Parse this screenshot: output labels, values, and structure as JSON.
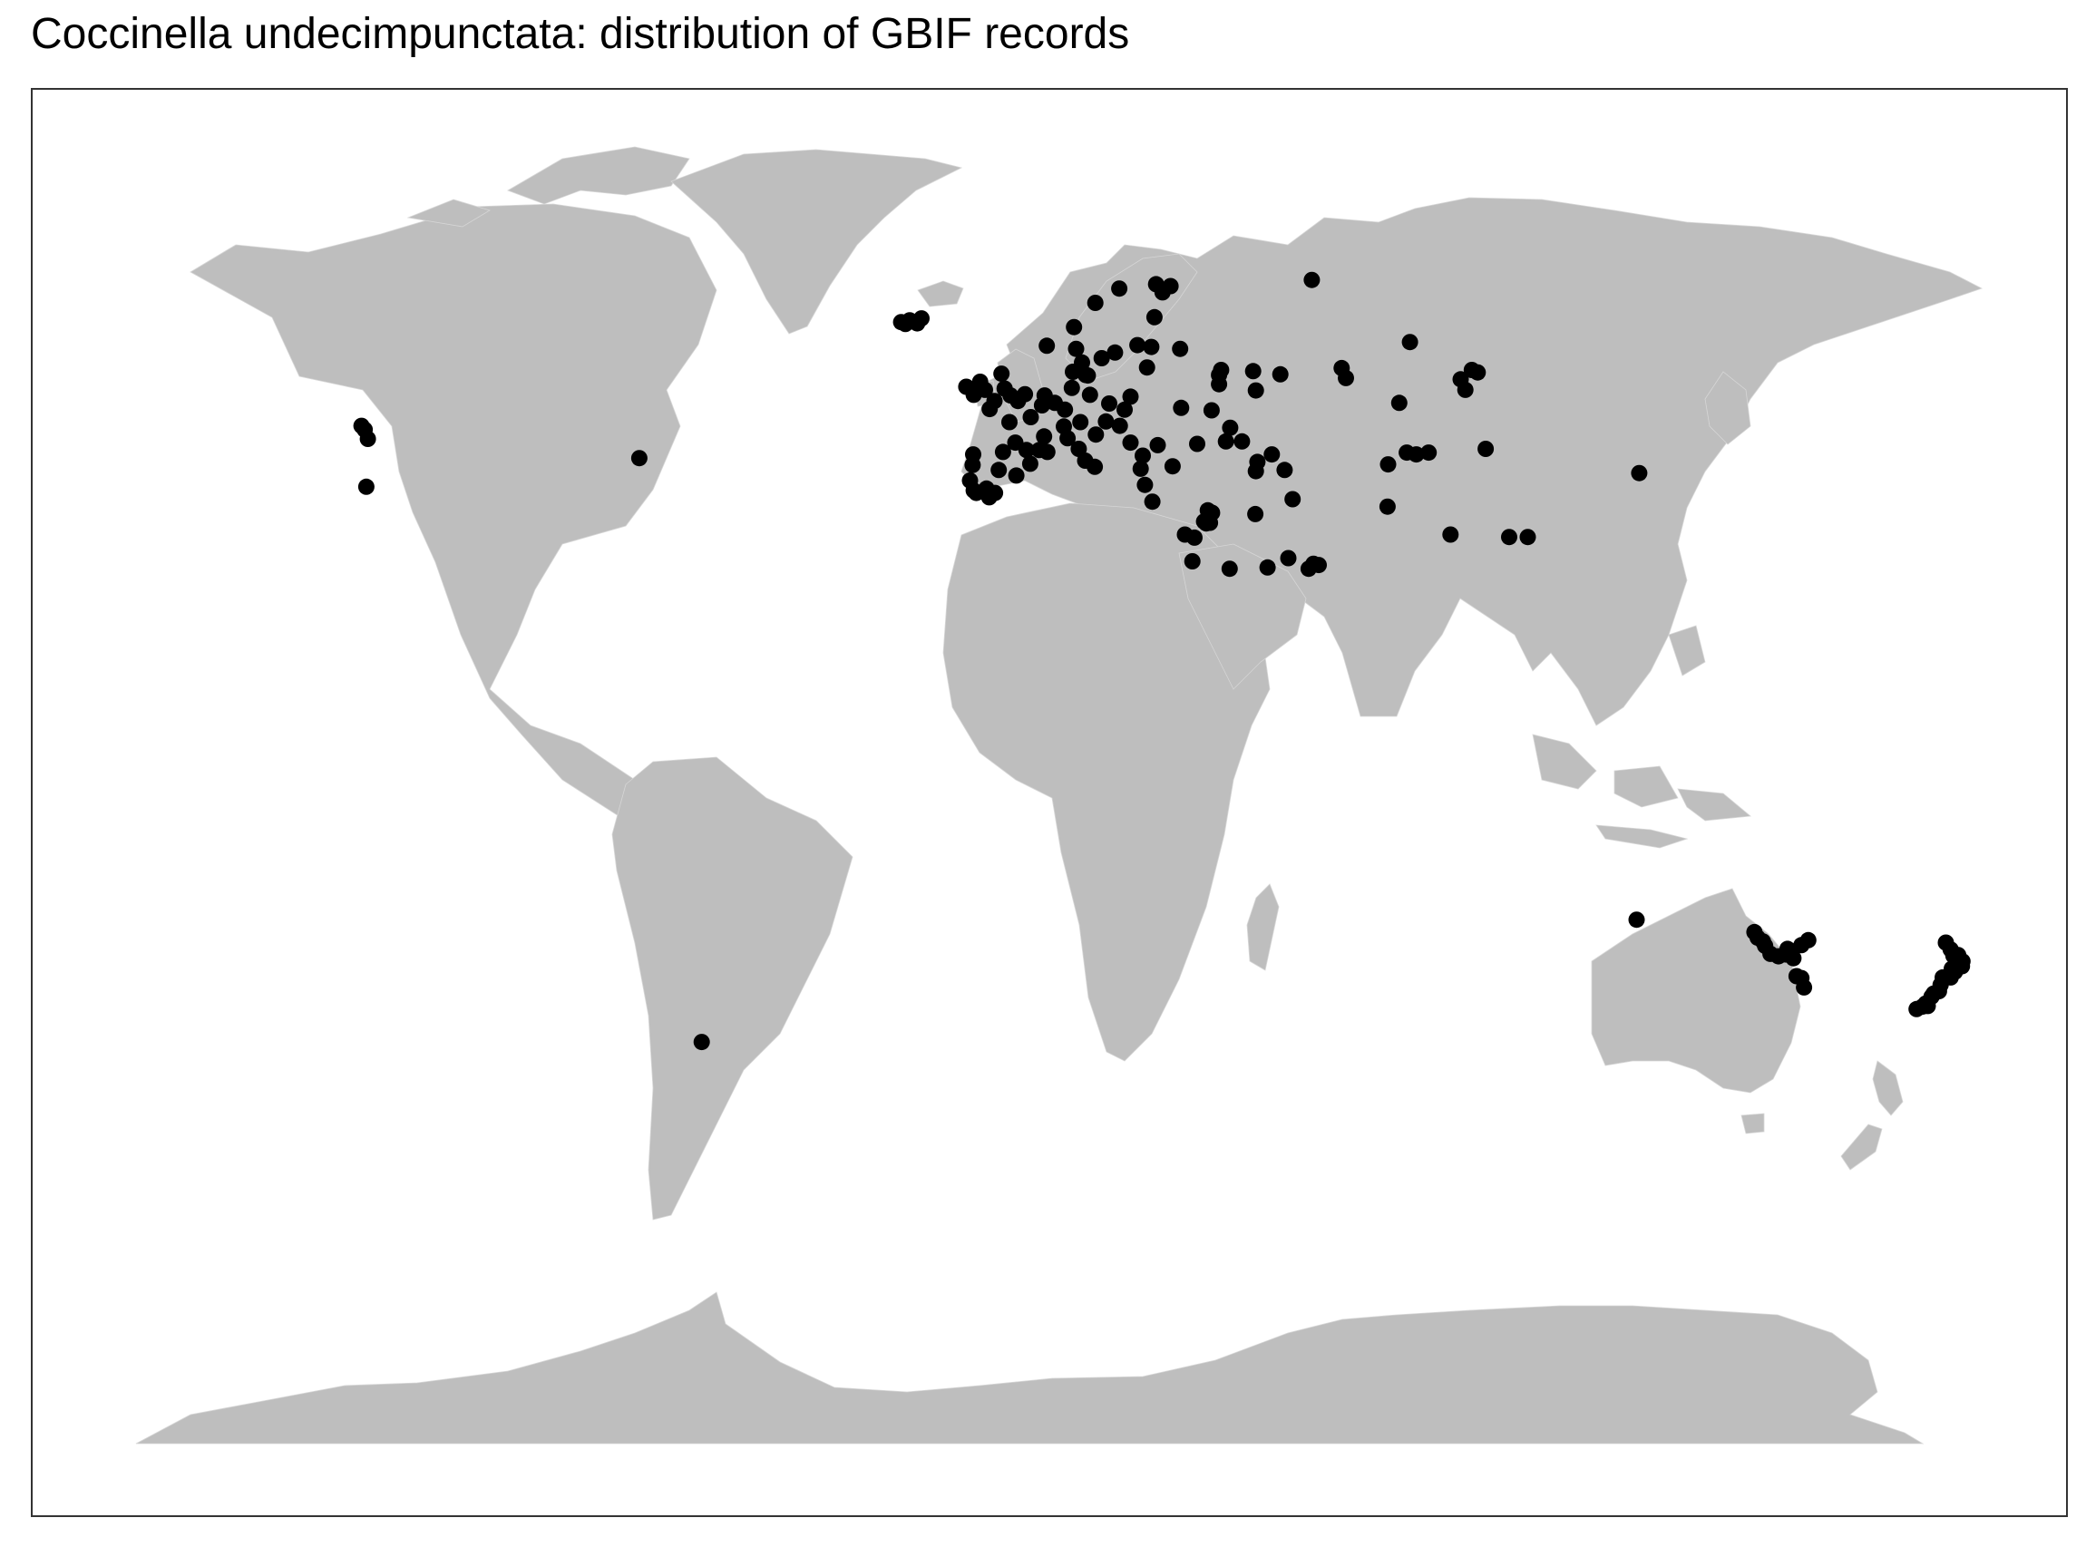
{
  "title": "Coccinella undecimpunctata: distribution of GBIF records",
  "colors": {
    "land": "#bebebe",
    "points": "#000000",
    "frame": "#333333",
    "background": "#ffffff"
  },
  "chart_data": {
    "type": "scatter",
    "projection": "equirectangular world map",
    "series_color": "#000000",
    "points": [
      {
        "lon": -123.2,
        "lat": 47.5
      },
      {
        "lon": -122.6,
        "lat": 46.9
      },
      {
        "lon": -122.0,
        "lat": 45.4
      },
      {
        "lon": -122.3,
        "lat": 37.7
      },
      {
        "lon": -71.1,
        "lat": 42.3
      },
      {
        "lon": -59.4,
        "lat": -51.7
      },
      {
        "lon": -22.0,
        "lat": 64.2
      },
      {
        "lon": -21.2,
        "lat": 63.9
      },
      {
        "lon": -20.4,
        "lat": 64.5
      },
      {
        "lon": -19.0,
        "lat": 64.0
      },
      {
        "lon": -18.2,
        "lat": 64.8
      },
      {
        "lon": -9.8,
        "lat": 53.8
      },
      {
        "lon": -8.4,
        "lat": 52.5
      },
      {
        "lon": -7.2,
        "lat": 54.6
      },
      {
        "lon": -6.3,
        "lat": 53.3
      },
      {
        "lon": -5.4,
        "lat": 50.2
      },
      {
        "lon": -4.5,
        "lat": 51.5
      },
      {
        "lon": -3.2,
        "lat": 55.9
      },
      {
        "lon": -2.6,
        "lat": 53.5
      },
      {
        "lon": -1.5,
        "lat": 52.4
      },
      {
        "lon": -0.1,
        "lat": 51.5
      },
      {
        "lon": 1.2,
        "lat": 52.6
      },
      {
        "lon": -1.7,
        "lat": 48.1
      },
      {
        "lon": -0.6,
        "lat": 44.8
      },
      {
        "lon": 1.5,
        "lat": 43.6
      },
      {
        "lon": 2.3,
        "lat": 48.9
      },
      {
        "lon": 3.9,
        "lat": 43.6
      },
      {
        "lon": 5.4,
        "lat": 43.3
      },
      {
        "lon": 4.8,
        "lat": 45.8
      },
      {
        "lon": 4.4,
        "lat": 50.8
      },
      {
        "lon": 4.9,
        "lat": 52.4
      },
      {
        "lon": 6.8,
        "lat": 51.2
      },
      {
        "lon": 8.7,
        "lat": 50.1
      },
      {
        "lon": 10.0,
        "lat": 53.6
      },
      {
        "lon": 11.6,
        "lat": 48.1
      },
      {
        "lon": 13.4,
        "lat": 52.5
      },
      {
        "lon": 8.5,
        "lat": 47.4
      },
      {
        "lon": 9.2,
        "lat": 45.5
      },
      {
        "lon": 11.3,
        "lat": 43.8
      },
      {
        "lon": 12.5,
        "lat": 41.9
      },
      {
        "lon": 14.3,
        "lat": 40.9
      },
      {
        "lon": 16.4,
        "lat": 48.2
      },
      {
        "lon": 14.5,
        "lat": 46.1
      },
      {
        "lon": 12.6,
        "lat": 55.7
      },
      {
        "lon": 10.2,
        "lat": 56.2
      },
      {
        "lon": 11.9,
        "lat": 57.7
      },
      {
        "lon": 13.0,
        "lat": 55.6
      },
      {
        "lon": 15.6,
        "lat": 58.4
      },
      {
        "lon": 18.1,
        "lat": 59.3
      },
      {
        "lon": 10.8,
        "lat": 59.9
      },
      {
        "lon": 5.3,
        "lat": 60.4
      },
      {
        "lon": 10.4,
        "lat": 63.4
      },
      {
        "lon": 14.4,
        "lat": 67.3
      },
      {
        "lon": 18.9,
        "lat": 69.6
      },
      {
        "lon": 22.3,
        "lat": 60.5
      },
      {
        "lon": 24.9,
        "lat": 60.2
      },
      {
        "lon": 25.5,
        "lat": 65.0
      },
      {
        "lon": 27.0,
        "lat": 69.0
      },
      {
        "lon": 25.8,
        "lat": 70.3
      },
      {
        "lon": 28.5,
        "lat": 70.0
      },
      {
        "lon": 21.0,
        "lat": 52.2
      },
      {
        "lon": 19.9,
        "lat": 50.1
      },
      {
        "lon": 17.0,
        "lat": 51.1
      },
      {
        "lon": 19.0,
        "lat": 47.5
      },
      {
        "lon": 24.1,
        "lat": 56.9
      },
      {
        "lon": 26.1,
        "lat": 44.4
      },
      {
        "lon": 23.3,
        "lat": 42.7
      },
      {
        "lon": 21.0,
        "lat": 44.8
      },
      {
        "lon": 28.9,
        "lat": 41.0
      },
      {
        "lon": 23.7,
        "lat": 38.0
      },
      {
        "lon": 22.9,
        "lat": 40.6
      },
      {
        "lon": 25.1,
        "lat": 35.3
      },
      {
        "lon": 30.5,
        "lat": 50.4
      },
      {
        "lon": 37.6,
        "lat": 55.7
      },
      {
        "lon": 30.3,
        "lat": 59.9
      },
      {
        "lon": 38.0,
        "lat": 56.5
      },
      {
        "lon": 37.6,
        "lat": 54.2
      },
      {
        "lon": 36.2,
        "lat": 50.0
      },
      {
        "lon": 44.0,
        "lat": 56.3
      },
      {
        "lon": 44.5,
        "lat": 53.2
      },
      {
        "lon": 49.1,
        "lat": 55.8
      },
      {
        "lon": 39.7,
        "lat": 47.2
      },
      {
        "lon": 38.9,
        "lat": 45.0
      },
      {
        "lon": 41.9,
        "lat": 45.0
      },
      {
        "lon": 44.8,
        "lat": 41.7
      },
      {
        "lon": 44.5,
        "lat": 40.2
      },
      {
        "lon": 47.5,
        "lat": 42.9
      },
      {
        "lon": 49.9,
        "lat": 40.4
      },
      {
        "lon": 33.5,
        "lat": 44.6
      },
      {
        "lon": 34.8,
        "lat": 32.1
      },
      {
        "lon": 35.5,
        "lat": 33.9
      },
      {
        "lon": 36.3,
        "lat": 33.5
      },
      {
        "lon": 35.2,
        "lat": 31.8
      },
      {
        "lon": 35.9,
        "lat": 31.9
      },
      {
        "lon": 33.0,
        "lat": 29.5
      },
      {
        "lon": 32.6,
        "lat": 25.7
      },
      {
        "lon": 31.2,
        "lat": 30.0
      },
      {
        "lon": 44.4,
        "lat": 33.3
      },
      {
        "lon": 46.7,
        "lat": 24.7
      },
      {
        "lon": 39.6,
        "lat": 24.5
      },
      {
        "lon": 51.4,
        "lat": 35.7
      },
      {
        "lon": 54.4,
        "lat": 24.5
      },
      {
        "lon": 55.3,
        "lat": 25.3
      },
      {
        "lon": 56.3,
        "lat": 25.1
      },
      {
        "lon": 50.6,
        "lat": 26.2
      },
      {
        "lon": 60.6,
        "lat": 56.8
      },
      {
        "lon": 61.4,
        "lat": 55.2
      },
      {
        "lon": 69.3,
        "lat": 41.3
      },
      {
        "lon": 71.4,
        "lat": 51.2
      },
      {
        "lon": 72.8,
        "lat": 43.2
      },
      {
        "lon": 76.9,
        "lat": 43.2
      },
      {
        "lon": 74.6,
        "lat": 42.9
      },
      {
        "lon": 69.2,
        "lat": 34.5
      },
      {
        "lon": 73.4,
        "lat": 61.0
      },
      {
        "lon": 82.9,
        "lat": 55.0
      },
      {
        "lon": 83.8,
        "lat": 53.3
      },
      {
        "lon": 85.0,
        "lat": 56.5
      },
      {
        "lon": 87.6,
        "lat": 43.8
      },
      {
        "lon": 92.0,
        "lat": 29.6
      },
      {
        "lon": 95.5,
        "lat": 29.6
      },
      {
        "lon": 116.4,
        "lat": 39.9
      },
      {
        "lon": 55.0,
        "lat": 71.0
      },
      {
        "lon": 86.1,
        "lat": 56.1
      },
      {
        "lon": 81.0,
        "lat": 30.0
      },
      {
        "lon": -8.6,
        "lat": 41.2
      },
      {
        "lon": -9.1,
        "lat": 38.7
      },
      {
        "lon": -8.4,
        "lat": 37.1
      },
      {
        "lon": -6.0,
        "lat": 37.4
      },
      {
        "lon": -3.7,
        "lat": 40.4
      },
      {
        "lon": -0.4,
        "lat": 39.5
      },
      {
        "lon": 2.2,
        "lat": 41.4
      },
      {
        "lon": -7.9,
        "lat": 36.7
      },
      {
        "lon": -5.5,
        "lat": 36.0
      },
      {
        "lon": -2.9,
        "lat": 43.3
      },
      {
        "lon": -8.5,
        "lat": 42.9
      },
      {
        "lon": -4.4,
        "lat": 36.7
      },
      {
        "lon": 115.9,
        "lat": -32.0
      },
      {
        "lon": 138.6,
        "lat": -34.9
      },
      {
        "lon": 139.6,
        "lat": -35.5
      },
      {
        "lon": 140.0,
        "lat": -36.2
      },
      {
        "lon": 141.0,
        "lat": -37.5
      },
      {
        "lon": 142.5,
        "lat": -37.9
      },
      {
        "lon": 143.9,
        "lat": -37.6
      },
      {
        "lon": 144.9,
        "lat": -37.8
      },
      {
        "lon": 145.3,
        "lat": -38.2
      },
      {
        "lon": 146.8,
        "lat": -36.1
      },
      {
        "lon": 147.3,
        "lat": -42.9
      },
      {
        "lon": 146.8,
        "lat": -41.4
      },
      {
        "lon": 148.1,
        "lat": -35.3
      },
      {
        "lon": 138.0,
        "lat": -34.0
      },
      {
        "lon": 144.2,
        "lat": -36.7
      },
      {
        "lon": 145.9,
        "lat": -41.1
      },
      {
        "lon": 174.8,
        "lat": -36.8
      },
      {
        "lon": 175.3,
        "lat": -37.8
      },
      {
        "lon": 176.2,
        "lat": -37.7
      },
      {
        "lon": 176.9,
        "lat": -39.5
      },
      {
        "lon": 175.6,
        "lat": -40.4
      },
      {
        "lon": 174.8,
        "lat": -41.3
      },
      {
        "lon": 173.3,
        "lat": -41.3
      },
      {
        "lon": 172.6,
        "lat": -43.5
      },
      {
        "lon": 171.2,
        "lat": -44.4
      },
      {
        "lon": 170.5,
        "lat": -45.9
      },
      {
        "lon": 168.4,
        "lat": -46.4
      },
      {
        "lon": 169.5,
        "lat": -46.0
      },
      {
        "lon": 175.0,
        "lat": -39.9
      },
      {
        "lon": 177.0,
        "lat": -38.7
      },
      {
        "lon": 173.9,
        "lat": -35.7
      },
      {
        "lon": 172.9,
        "lat": -42.5
      },
      {
        "lon": 171.6,
        "lat": -43.9
      },
      {
        "lon": 170.1,
        "lat": -45.5
      }
    ]
  }
}
